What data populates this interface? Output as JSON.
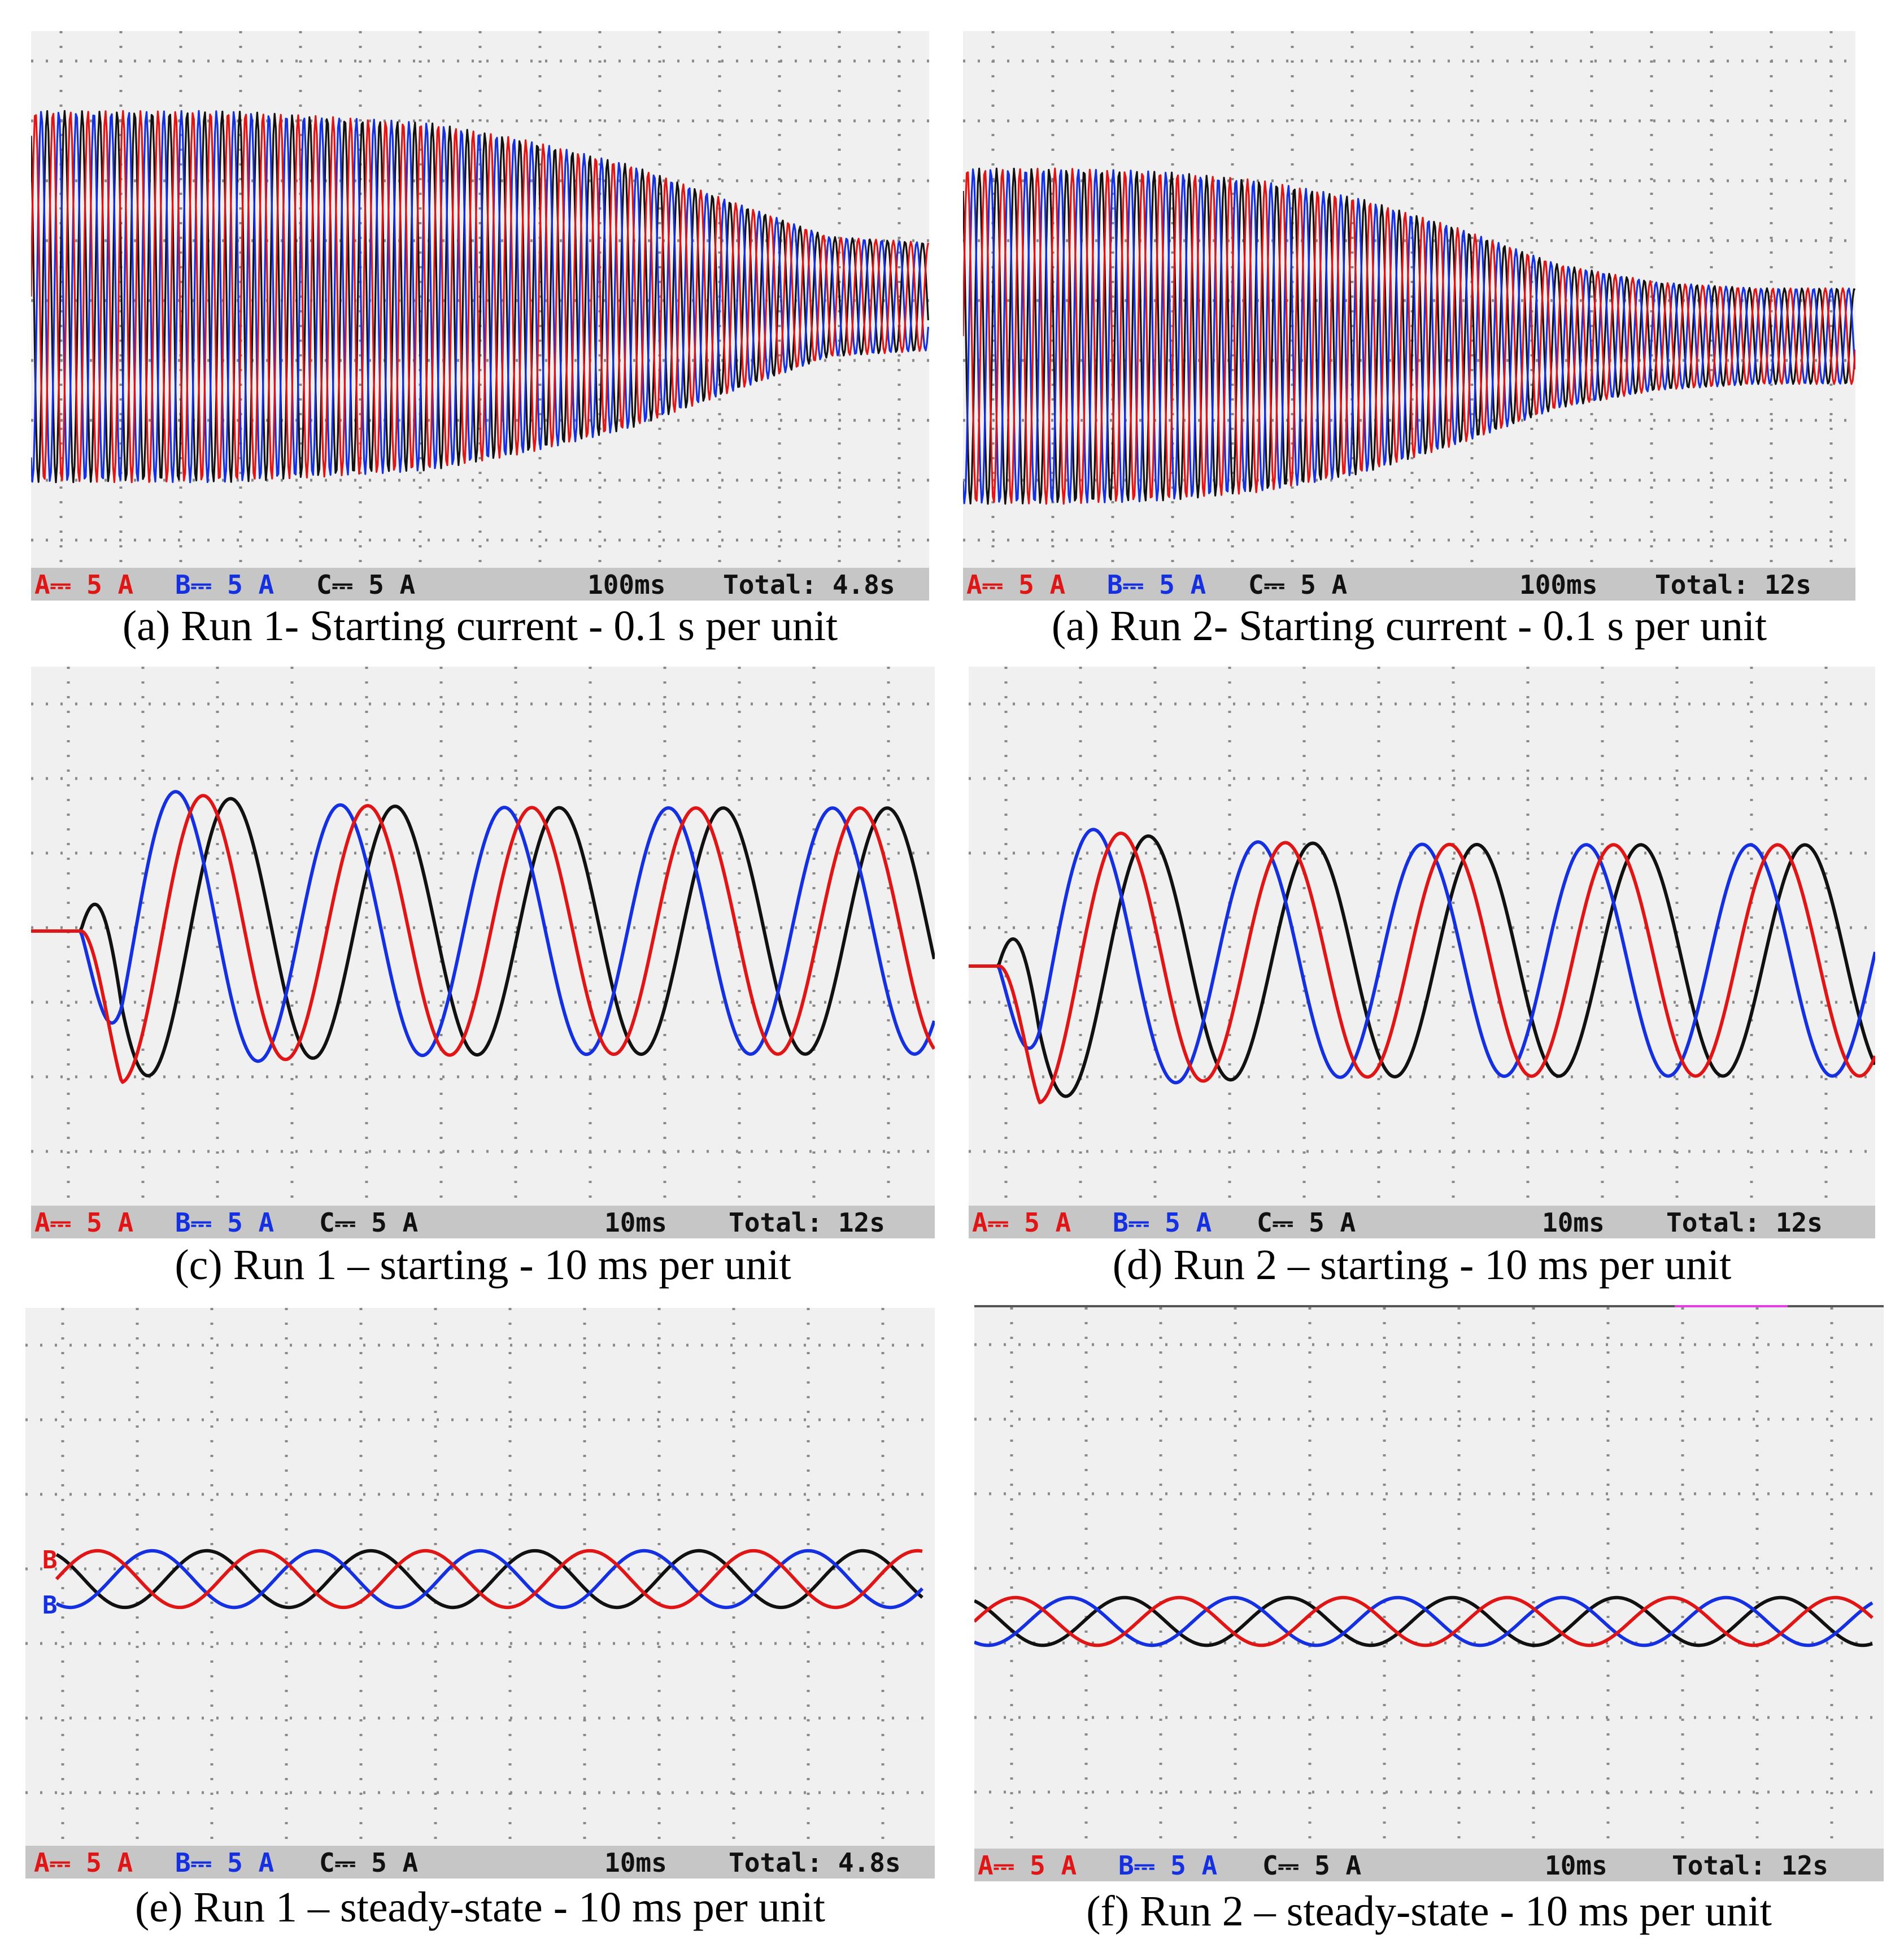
{
  "colors": {
    "A": "#e01515",
    "B": "#1530e0",
    "C": "#111111",
    "screen": "#f0f0f0",
    "grid": "#8a8a8a",
    "statusbar": "#c6c6c6"
  },
  "panels": [
    {
      "caption": "(a) Run 1- Starting current - 0.1 s per unit",
      "status": {
        "a": "A⎓ 5 A",
        "b": "B⎓ 5 A",
        "c": "C⎓ 5 A",
        "timebase": "100ms",
        "total": "Total:  4.8s"
      }
    },
    {
      "caption": "(a) Run 2- Starting current - 0.1 s per unit",
      "status": {
        "a": "A⎓ 5 A",
        "b": "B⎓ 5 A",
        "c": "C⎓ 5 A",
        "timebase": "100ms",
        "total": "Total: 12s"
      }
    },
    {
      "caption": "(c) Run 1 – starting - 10 ms per unit",
      "status": {
        "a": "A⎓ 5 A",
        "b": "B⎓ 5 A",
        "c": "C⎓ 5 A",
        "timebase": "10ms",
        "total": "Total: 12s"
      }
    },
    {
      "caption": "(d) Run 2 – starting - 10 ms per unit",
      "status": {
        "a": "A⎓ 5 A",
        "b": "B⎓ 5 A",
        "c": "C⎓ 5 A",
        "timebase": "10ms",
        "total": "Total: 12s"
      }
    },
    {
      "caption": "(e) Run 1  – steady-state - 10 ms per unit",
      "status": {
        "a": "A⎓ 5 A",
        "b": "B⎓ 5 A",
        "c": "C⎓ 5 A",
        "timebase": "10ms",
        "total": "Total:  4.8s"
      },
      "channel_markers": {
        "top": "B",
        "bottom": "B"
      }
    },
    {
      "caption": "(f) Run 2  – steady-state - 10 ms per unit",
      "status": {
        "a": "A⎓ 5 A",
        "b": "B⎓ 5 A",
        "c": "C⎓ 5 A",
        "timebase": "10ms",
        "total": "Total: 12s"
      }
    }
  ],
  "chart_data": [
    {
      "type": "line",
      "series": [
        {
          "name": "A",
          "envelope_peak_divisions": [
            3.1,
            3.1,
            3.1,
            3.0,
            2.9,
            2.6,
            2.2,
            1.6,
            1.0,
            0.9
          ]
        },
        {
          "name": "B",
          "envelope_peak_divisions": [
            3.1,
            3.1,
            3.1,
            3.0,
            2.9,
            2.6,
            2.2,
            1.6,
            1.0,
            0.9
          ]
        },
        {
          "name": "C",
          "envelope_peak_divisions": [
            3.1,
            3.1,
            3.1,
            3.0,
            2.9,
            2.6,
            2.2,
            1.6,
            1.0,
            0.9
          ]
        }
      ]
    },
    {
      "type": "line",
      "series": [
        {
          "name": "A",
          "envelope_peak_divisions": [
            2.8,
            2.8,
            2.75,
            2.6,
            2.3,
            1.8,
            1.2,
            0.9,
            0.8,
            0.8
          ]
        },
        {
          "name": "B",
          "envelope_peak_divisions": [
            2.8,
            2.8,
            2.75,
            2.6,
            2.3,
            1.8,
            1.2,
            0.9,
            0.8,
            0.8
          ]
        },
        {
          "name": "C",
          "envelope_peak_divisions": [
            2.8,
            2.8,
            2.75,
            2.6,
            2.3,
            1.8,
            1.2,
            0.9,
            0.8,
            0.8
          ]
        }
      ]
    },
    {
      "type": "line",
      "series": [
        {
          "name": "A",
          "peak_divisions": 1.65,
          "period_divisions": 2.2,
          "start_divisions": 1.0
        },
        {
          "name": "B",
          "peak_divisions": 1.65,
          "period_divisions": 2.2,
          "start_divisions": 1.0
        },
        {
          "name": "C",
          "peak_divisions": 1.65,
          "period_divisions": 2.2,
          "start_divisions": 1.0
        }
      ]
    },
    {
      "type": "line",
      "series": [
        {
          "name": "A",
          "peak_divisions": 1.55,
          "period_divisions": 2.2,
          "start_divisions": 0.6
        },
        {
          "name": "B",
          "peak_divisions": 1.55,
          "period_divisions": 2.2,
          "start_divisions": 0.6
        },
        {
          "name": "C",
          "peak_divisions": 1.55,
          "period_divisions": 2.2,
          "start_divisions": 0.6
        }
      ]
    },
    {
      "type": "line",
      "series": [
        {
          "name": "A",
          "peak_divisions": 0.38,
          "period_divisions": 2.2
        },
        {
          "name": "B",
          "peak_divisions": 0.38,
          "period_divisions": 2.2
        },
        {
          "name": "C",
          "peak_divisions": 0.38,
          "period_divisions": 2.2
        }
      ]
    },
    {
      "type": "line",
      "series": [
        {
          "name": "A",
          "peak_divisions": 0.32,
          "period_divisions": 2.2
        },
        {
          "name": "B",
          "peak_divisions": 0.32,
          "period_divisions": 2.2
        },
        {
          "name": "C",
          "peak_divisions": 0.32,
          "period_divisions": 2.2
        }
      ]
    }
  ]
}
